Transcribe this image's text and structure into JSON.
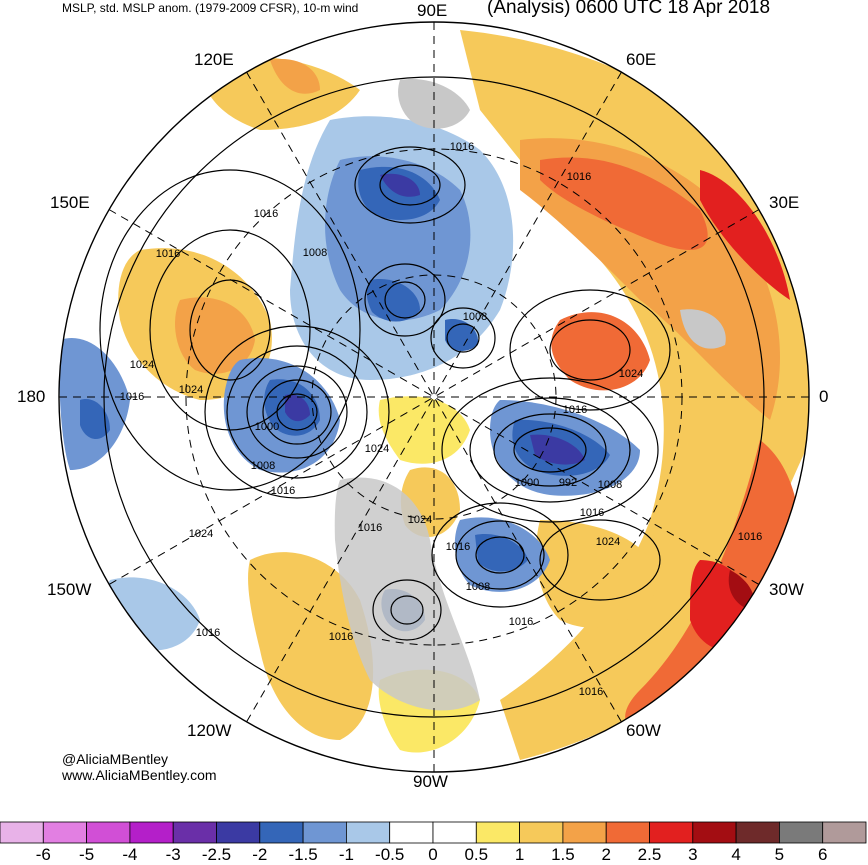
{
  "header": {
    "left_title": "MSLP, std. MSLP anom. (1979-2009 CFSR), 10-m wind",
    "right_title": "(Analysis) 0600 UTC 18 Apr 2018"
  },
  "longitude_labels": {
    "lon_90e": "90E",
    "lon_60e": "60E",
    "lon_120e": "120E",
    "lon_30e": "30E",
    "lon_150e": "150E",
    "lon_180": "180",
    "lon_0": "0",
    "lon_150w": "150W",
    "lon_30w": "30W",
    "lon_120w": "120W",
    "lon_60w": "60W",
    "lon_90w": "90W"
  },
  "isobar_labels": [
    "1016",
    "1016",
    "1016",
    "1008",
    "1008",
    "1024",
    "1024",
    "1016",
    "1000",
    "1008",
    "1016",
    "1024",
    "1016",
    "1024",
    "1016",
    "1016",
    "1000",
    "992",
    "1008",
    "1016",
    "1024",
    "1016",
    "1008",
    "1024",
    "1016",
    "1016",
    "1016",
    "1016",
    "1024",
    "1016"
  ],
  "credits": {
    "twitter": "@AliciaMBentley",
    "website": "www.AliciaMBentley.com"
  },
  "colorbar": {
    "labels": [
      "-6",
      "-5",
      "-4",
      "-3",
      "-2.5",
      "-2",
      "-1.5",
      "-1",
      "-0.5",
      "0",
      "0.5",
      "1",
      "1.5",
      "2",
      "2.5",
      "3",
      "4",
      "5",
      "6"
    ],
    "colors": [
      "#e8b2e8",
      "#e27fe2",
      "#d14fd6",
      "#b41fc9",
      "#6a2fa8",
      "#3b3aa3",
      "#3466b8",
      "#6f96d3",
      "#a9c8e8",
      "#ffffff",
      "#ffffff",
      "#fbe866",
      "#f6c95a",
      "#f3a248",
      "#f06a36",
      "#e2201f",
      "#a30d12",
      "#6e2a2a",
      "#7a7a7a",
      "#b09a9a"
    ]
  },
  "anomaly_palette": {
    "strong_negative": "#3b3aa3",
    "moderate_negative": "#3466b8",
    "weak_negative": "#6f96d3",
    "slight_negative": "#a9c8e8",
    "land_gray": "#c8c8c8",
    "slight_positive": "#fbe866",
    "weak_positive": "#f6c95a",
    "moderate_positive": "#f3a248",
    "strong_positive": "#f06a36",
    "very_strong_positive": "#e2201f",
    "extreme_positive": "#a30d12"
  }
}
